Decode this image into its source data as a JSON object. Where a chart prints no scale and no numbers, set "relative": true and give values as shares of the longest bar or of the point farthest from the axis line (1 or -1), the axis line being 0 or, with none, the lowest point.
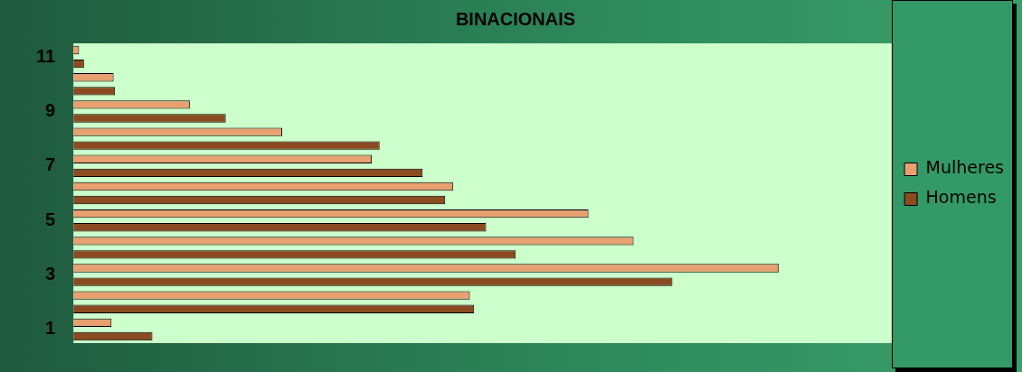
{
  "chart_data": {
    "type": "bar",
    "orientation": "horizontal",
    "relative": true,
    "title": "BINACIONAIS",
    "categories": [
      "11",
      null,
      "9",
      null,
      "7",
      null,
      "5",
      null,
      "3",
      null,
      "1"
    ],
    "series": [
      {
        "name": "Mulheres",
        "color": "#e8a070",
        "values": [
          0.008,
          0.057,
          0.165,
          0.296,
          0.423,
          0.538,
          0.73,
          0.794,
          1,
          0.562,
          0.054
        ]
      },
      {
        "name": "Homens",
        "color": "#8b4a20",
        "values": [
          0.015,
          0.059,
          0.216,
          0.434,
          0.495,
          0.527,
          0.585,
          0.627,
          0.849,
          0.568,
          0.112
        ]
      }
    ],
    "legend": "right",
    "grid": false
  }
}
